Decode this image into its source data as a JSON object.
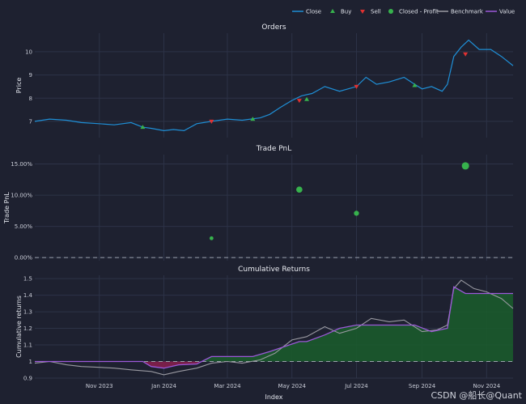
{
  "colors": {
    "background": "#1e2130",
    "grid": "#2d3347",
    "close": "#1f8fd6",
    "buy": "#37b24d",
    "sell": "#e03131",
    "profit": "#37b24d",
    "benchmark": "#9a9aa2",
    "value": "#9b59d8",
    "area_pos": "#1a5d2c",
    "area_neg": "#8a1f4e",
    "zero_line": "#9aa0ab"
  },
  "legend": [
    {
      "name": "Close",
      "kind": "line",
      "color": "#1f8fd6"
    },
    {
      "name": "Buy",
      "kind": "triangle-up",
      "color": "#37b24d"
    },
    {
      "name": "Sell",
      "kind": "triangle-down",
      "color": "#e03131"
    },
    {
      "name": "Closed - Profit",
      "kind": "circle",
      "color": "#37b24d"
    },
    {
      "name": "Benchmark",
      "kind": "line",
      "color": "#9a9aa2"
    },
    {
      "name": "Value",
      "kind": "line",
      "color": "#9b59d8"
    }
  ],
  "x_ticks": [
    "Nov 2023",
    "Jan 2024",
    "Mar 2024",
    "May 2024",
    "Jul 2024",
    "Sep 2024",
    "Nov 2024"
  ],
  "x_tick_dates": [
    "2023-11-01",
    "2024-01-01",
    "2024-03-01",
    "2024-05-01",
    "2024-07-01",
    "2024-09-01",
    "2024-11-01"
  ],
  "x_range": [
    "2023-09-01",
    "2024-11-26"
  ],
  "xlabel": "Index",
  "watermark": "CSDN @船长@Quant",
  "chart_data": [
    {
      "type": "line",
      "title": "Orders",
      "ylabel": "Price",
      "yticks": [
        7,
        8,
        9,
        10
      ],
      "ylim": [
        6.3,
        10.8
      ],
      "series": [
        {
          "name": "Close",
          "x": [
            "2023-09-01",
            "2023-09-15",
            "2023-10-01",
            "2023-10-15",
            "2023-11-01",
            "2023-11-15",
            "2023-12-01",
            "2023-12-12",
            "2023-12-20",
            "2024-01-01",
            "2024-01-10",
            "2024-01-20",
            "2024-02-01",
            "2024-02-15",
            "2024-03-01",
            "2024-03-15",
            "2024-04-01",
            "2024-04-10",
            "2024-04-20",
            "2024-05-01",
            "2024-05-10",
            "2024-05-20",
            "2024-06-01",
            "2024-06-15",
            "2024-07-01",
            "2024-07-10",
            "2024-07-20",
            "2024-08-01",
            "2024-08-15",
            "2024-08-25",
            "2024-09-01",
            "2024-09-10",
            "2024-09-20",
            "2024-09-25",
            "2024-10-01",
            "2024-10-08",
            "2024-10-15",
            "2024-10-25",
            "2024-11-05",
            "2024-11-15",
            "2024-11-26"
          ],
          "y": [
            7.0,
            7.1,
            7.05,
            6.95,
            6.9,
            6.85,
            6.95,
            6.75,
            6.7,
            6.6,
            6.65,
            6.6,
            6.9,
            7.0,
            7.1,
            7.05,
            7.15,
            7.3,
            7.6,
            7.9,
            8.1,
            8.2,
            8.5,
            8.3,
            8.5,
            8.9,
            8.6,
            8.7,
            8.9,
            8.6,
            8.4,
            8.5,
            8.3,
            8.6,
            9.8,
            10.2,
            10.5,
            10.1,
            10.1,
            9.8,
            9.4
          ]
        }
      ],
      "buy": {
        "x": [
          "2023-12-12",
          "2024-03-25",
          "2024-05-15",
          "2024-08-25"
        ],
        "y": [
          6.75,
          7.1,
          7.95,
          8.55
        ]
      },
      "sell": {
        "x": [
          "2024-02-15",
          "2024-05-08",
          "2024-07-01",
          "2024-10-12"
        ],
        "y": [
          7.0,
          7.9,
          8.5,
          9.9
        ]
      }
    },
    {
      "type": "scatter",
      "title": "Trade PnL",
      "ylabel": "Trade PnL",
      "yticks": [
        "0.00%",
        "5.00%",
        "10.00%",
        "15.00%"
      ],
      "ytick_values": [
        0,
        5,
        10,
        15
      ],
      "ylim": [
        -0.5,
        16.5
      ],
      "series": [
        {
          "name": "Closed - Profit",
          "x": [
            "2024-02-15",
            "2024-05-08",
            "2024-07-01",
            "2024-10-12"
          ],
          "y": [
            3.1,
            10.9,
            7.1,
            14.7
          ]
        }
      ]
    },
    {
      "type": "area",
      "title": "Cumulative Returns",
      "ylabel": "Cumulative returns",
      "yticks": [
        0.9,
        1,
        1.1,
        1.2,
        1.3,
        1.4,
        1.5
      ],
      "ylim": [
        0.9,
        1.52
      ],
      "baseline": 1,
      "series": [
        {
          "name": "Value",
          "x": [
            "2023-09-01",
            "2023-12-12",
            "2023-12-20",
            "2024-01-01",
            "2024-01-15",
            "2024-02-01",
            "2024-02-15",
            "2024-03-25",
            "2024-04-10",
            "2024-05-08",
            "2024-05-15",
            "2024-06-01",
            "2024-06-15",
            "2024-07-01",
            "2024-08-25",
            "2024-09-10",
            "2024-09-25",
            "2024-10-01",
            "2024-10-12",
            "2024-11-26"
          ],
          "y": [
            1.0,
            1.0,
            0.97,
            0.96,
            0.98,
            0.985,
            1.03,
            1.03,
            1.06,
            1.12,
            1.12,
            1.16,
            1.2,
            1.22,
            1.22,
            1.18,
            1.2,
            1.45,
            1.41,
            1.41
          ]
        },
        {
          "name": "Benchmark",
          "x": [
            "2023-09-01",
            "2023-09-15",
            "2023-10-01",
            "2023-10-15",
            "2023-11-01",
            "2023-11-15",
            "2023-12-01",
            "2023-12-20",
            "2024-01-01",
            "2024-01-15",
            "2024-02-01",
            "2024-02-15",
            "2024-03-01",
            "2024-03-15",
            "2024-04-01",
            "2024-04-15",
            "2024-05-01",
            "2024-05-15",
            "2024-06-01",
            "2024-06-15",
            "2024-07-01",
            "2024-07-15",
            "2024-08-01",
            "2024-08-15",
            "2024-09-01",
            "2024-09-15",
            "2024-09-25",
            "2024-10-01",
            "2024-10-08",
            "2024-10-20",
            "2024-11-01",
            "2024-11-15",
            "2024-11-26"
          ],
          "y": [
            0.99,
            1.0,
            0.98,
            0.97,
            0.965,
            0.96,
            0.95,
            0.94,
            0.92,
            0.94,
            0.96,
            0.99,
            1.0,
            0.99,
            1.01,
            1.05,
            1.13,
            1.15,
            1.21,
            1.17,
            1.2,
            1.26,
            1.24,
            1.25,
            1.18,
            1.19,
            1.22,
            1.44,
            1.49,
            1.44,
            1.42,
            1.38,
            1.32
          ]
        }
      ]
    }
  ]
}
